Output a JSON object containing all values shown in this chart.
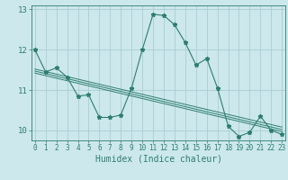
{
  "title": "",
  "xlabel": "Humidex (Indice chaleur)",
  "ylabel": "",
  "bg_color": "#cce8ec",
  "grid_color": "#aacdd4",
  "line_color": "#2e7d6e",
  "main_series": {
    "x": [
      0,
      1,
      2,
      3,
      4,
      5,
      6,
      7,
      8,
      9,
      10,
      11,
      12,
      13,
      14,
      15,
      16,
      17,
      18,
      19,
      20,
      21,
      22,
      23
    ],
    "y": [
      12.0,
      11.45,
      11.55,
      11.32,
      10.85,
      10.88,
      10.32,
      10.32,
      10.38,
      11.05,
      12.0,
      12.88,
      12.85,
      12.62,
      12.18,
      11.62,
      11.78,
      11.05,
      10.1,
      9.85,
      9.95,
      10.35,
      10.0,
      9.9
    ]
  },
  "trend_lines": [
    {
      "x": [
        0,
        23
      ],
      "y": [
        11.52,
        10.08
      ]
    },
    {
      "x": [
        0,
        23
      ],
      "y": [
        11.47,
        10.02
      ]
    },
    {
      "x": [
        0,
        23
      ],
      "y": [
        11.42,
        9.97
      ]
    }
  ],
  "xlim": [
    -0.3,
    23.3
  ],
  "ylim": [
    9.75,
    13.1
  ],
  "yticks": [
    10,
    11,
    12,
    13
  ],
  "xticks": [
    0,
    1,
    2,
    3,
    4,
    5,
    6,
    7,
    8,
    9,
    10,
    11,
    12,
    13,
    14,
    15,
    16,
    17,
    18,
    19,
    20,
    21,
    22,
    23
  ],
  "xtick_fontsize": 5.5,
  "ytick_fontsize": 6.5,
  "xlabel_fontsize": 7.0,
  "marker": "*",
  "markersize": 3.5,
  "linewidth": 0.8
}
